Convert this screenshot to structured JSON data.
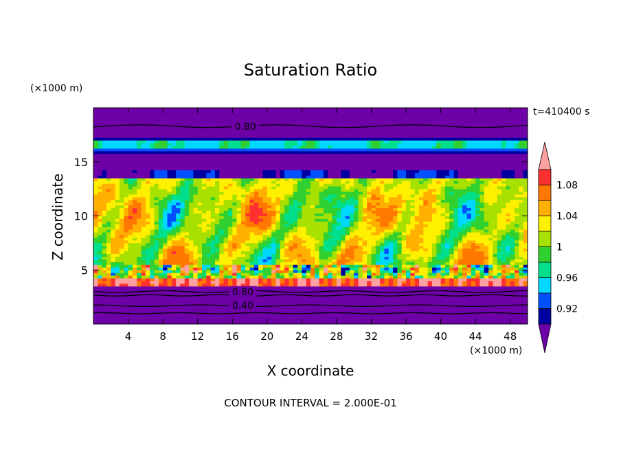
{
  "chart_data": {
    "type": "heatmap",
    "title": "Saturation Ratio",
    "xlabel": "X coordinate",
    "ylabel": "Z coordinate",
    "x_unit": "(×1000 m)",
    "y_unit": "(×1000 m)",
    "time_label": "t=410400 s",
    "footer": "CONTOUR INTERVAL = 2.000E-01",
    "xlim": [
      0,
      50
    ],
    "ylim": [
      0,
      20
    ],
    "x_ticks": [
      4,
      8,
      12,
      16,
      20,
      24,
      28,
      32,
      36,
      40,
      44,
      48
    ],
    "y_ticks": [
      5,
      10,
      15
    ],
    "colorbar": {
      "labels": [
        "0.92",
        "0.96",
        "1",
        "1.04",
        "1.08"
      ],
      "colors": [
        "#6e00a8",
        "#0000a0",
        "#0050ff",
        "#00d8ff",
        "#00e08c",
        "#30d030",
        "#a8e000",
        "#fff000",
        "#ffb000",
        "#ff7800",
        "#ff3030",
        "#ffa0a0"
      ],
      "extend": "both"
    },
    "contour_labels": [
      {
        "text": "0.80",
        "x": 17.5,
        "z": 18.3
      },
      {
        "text": "0.80",
        "x": 17.2,
        "z": 3.0
      },
      {
        "text": "0.40",
        "x": 17.2,
        "z": 1.7
      }
    ],
    "bands": [
      {
        "z": [
          0,
          3.4
        ],
        "level": "below 0.92"
      },
      {
        "z": [
          3.4,
          4.3
        ],
        "level": "above 1.1"
      },
      {
        "z": [
          4.3,
          13.5
        ],
        "level": "0.94 – 1.08"
      },
      {
        "z": [
          13.5,
          15.7
        ],
        "level": "below 0.92"
      },
      {
        "z": [
          15.7,
          17.3
        ],
        "level": "0.94 – 1.00"
      },
      {
        "z": [
          17.3,
          20
        ],
        "level": "below 0.92"
      }
    ]
  }
}
